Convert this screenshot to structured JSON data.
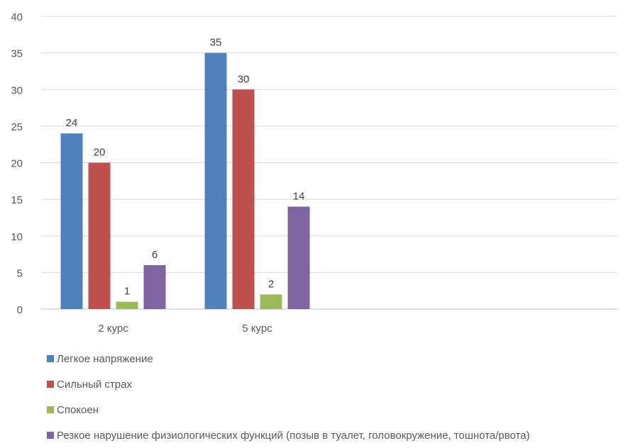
{
  "chart_data": {
    "type": "bar",
    "title": "",
    "xlabel": "",
    "ylabel": "",
    "categories": [
      "2 курс",
      "5 курс",
      "",
      ""
    ],
    "ylim": [
      0,
      40
    ],
    "yticks": [
      0,
      5,
      10,
      15,
      20,
      25,
      30,
      35,
      40
    ],
    "grid": true,
    "legend_position": "bottom-left",
    "series": [
      {
        "name": "Легкое напряжение",
        "values": [
          24,
          35,
          null,
          null
        ],
        "color": "#4F81BD"
      },
      {
        "name": "Сильный страх",
        "values": [
          20,
          30,
          null,
          null
        ],
        "color": "#C0504D"
      },
      {
        "name": "Спокоен",
        "values": [
          1,
          2,
          null,
          null
        ],
        "color": "#9BBB59"
      },
      {
        "name": "Резкое нарушение физиологических функций (позыв в туалет, головокружение, тошнота/рвота)",
        "values": [
          6,
          14,
          null,
          null
        ],
        "color": "#8064A2"
      }
    ],
    "data_labels": true
  }
}
